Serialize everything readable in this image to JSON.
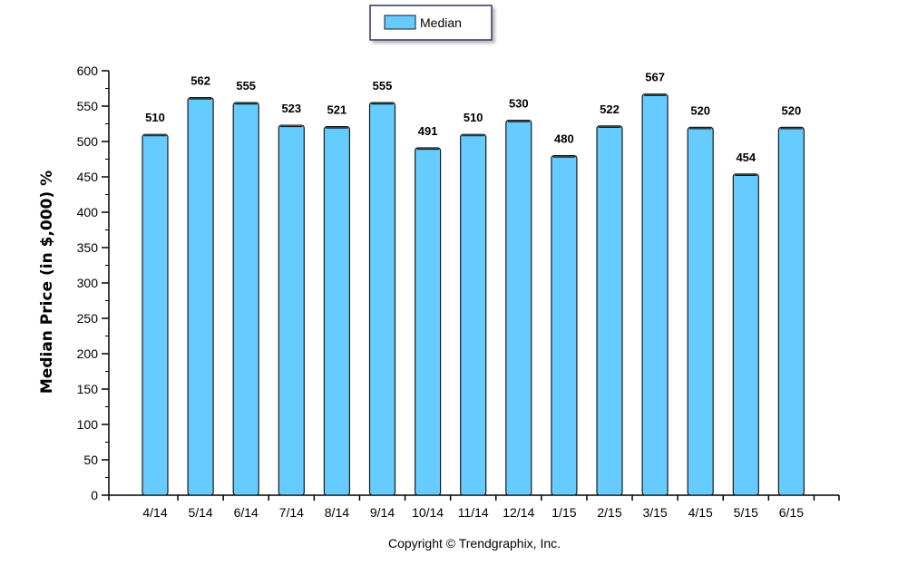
{
  "chart_data": {
    "type": "bar",
    "categories": [
      "4/14",
      "5/14",
      "6/14",
      "7/14",
      "8/14",
      "9/14",
      "10/14",
      "11/14",
      "12/14",
      "1/15",
      "2/15",
      "3/15",
      "4/15",
      "5/15",
      "6/15"
    ],
    "series": [
      {
        "name": "Median",
        "values": [
          510,
          562,
          555,
          523,
          521,
          555,
          491,
          510,
          530,
          480,
          522,
          567,
          520,
          454,
          520
        ]
      }
    ],
    "ylabel": "Median Price (in $,000) %",
    "xlabel": "",
    "ylim": [
      0,
      600
    ],
    "yticks": [
      0,
      50,
      100,
      150,
      200,
      250,
      300,
      350,
      400,
      450,
      500,
      550,
      600
    ],
    "grid": false,
    "legend": "top-center",
    "colors": {
      "bar_fill": "#66ccff",
      "bar_stroke": "#1a1a1a",
      "axis": "#000000"
    }
  },
  "footer": {
    "copyright": "Copyright © Trendgraphix, Inc."
  }
}
